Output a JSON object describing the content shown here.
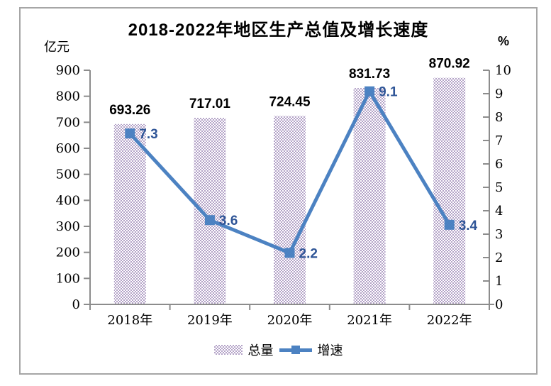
{
  "title": "2018-2022年地区生产总值及增长速度",
  "left_axis_unit": "亿元",
  "right_axis_unit": "%",
  "legend": {
    "bars_label": "总量",
    "line_label": "增速"
  },
  "colors": {
    "bar_pattern": "#B3A2C7",
    "line": "#4C82C2",
    "data_label_blue": "#2F5597",
    "bar_label_black": "#000000",
    "axis": "#8C8C8C",
    "border": "#A6A6A6",
    "text": "#000000",
    "background": "#FFFFFF"
  },
  "chart_data": {
    "type": "bar+line combo",
    "title": "2018-2022年地区生产总值及增长速度",
    "categories": [
      "2018年",
      "2019年",
      "2020年",
      "2021年",
      "2022年"
    ],
    "series": [
      {
        "name": "总量",
        "type": "bar",
        "axis": "left",
        "values": [
          693.26,
          717.01,
          724.45,
          831.73,
          870.92
        ],
        "labels": [
          "693.26",
          "717.01",
          "724.45",
          "831.73",
          "870.92"
        ]
      },
      {
        "name": "增速",
        "type": "line",
        "axis": "right",
        "values": [
          7.3,
          3.6,
          2.2,
          9.1,
          3.4
        ],
        "labels": [
          "7.3",
          "3.6",
          "2.2",
          "9.1",
          "3.4"
        ]
      }
    ],
    "left_axis": {
      "label": "亿元",
      "min": 0,
      "max": 900,
      "step": 100
    },
    "right_axis": {
      "label": "%",
      "min": 0,
      "max": 10,
      "step": 1
    },
    "grid": false,
    "legend_position": "bottom"
  }
}
